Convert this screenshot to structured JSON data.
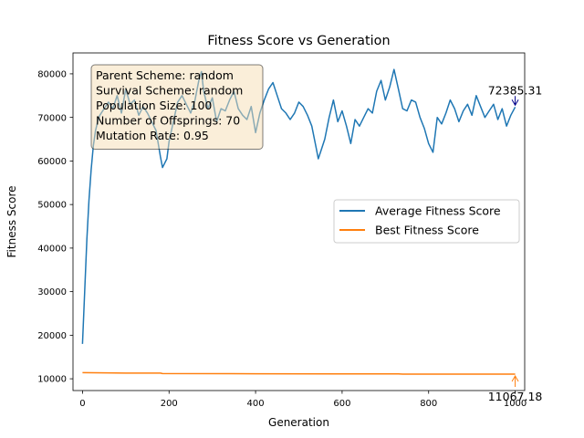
{
  "chart_data": {
    "type": "line",
    "title": "Fitness Score vs Generation",
    "xlabel": "Generation",
    "ylabel": "Fitness Score",
    "xlim": [
      -22,
      1022
    ],
    "ylim": [
      7300,
      84800
    ],
    "xticks": [
      0,
      200,
      400,
      600,
      800,
      1000
    ],
    "yticks": [
      10000,
      20000,
      30000,
      40000,
      50000,
      60000,
      70000,
      80000
    ],
    "grid": false,
    "legend_position": "center-right",
    "series": [
      {
        "name": "Average Fitness Score",
        "color": "#1f77b4",
        "x": [
          0,
          5,
          10,
          15,
          20,
          25,
          30,
          35,
          40,
          50,
          60,
          70,
          80,
          90,
          100,
          110,
          120,
          130,
          140,
          150,
          160,
          170,
          180,
          185,
          190,
          195,
          200,
          210,
          220,
          230,
          240,
          250,
          260,
          270,
          275,
          280,
          290,
          300,
          310,
          320,
          330,
          340,
          350,
          360,
          370,
          380,
          390,
          400,
          410,
          420,
          430,
          440,
          450,
          460,
          470,
          480,
          490,
          500,
          510,
          520,
          530,
          540,
          545,
          550,
          560,
          570,
          580,
          590,
          600,
          610,
          620,
          630,
          640,
          650,
          660,
          670,
          680,
          690,
          700,
          710,
          720,
          730,
          740,
          750,
          760,
          770,
          780,
          790,
          800,
          810,
          820,
          830,
          840,
          850,
          860,
          870,
          880,
          890,
          900,
          910,
          920,
          930,
          940,
          950,
          960,
          970,
          980,
          990,
          1000
        ],
        "values": [
          18000,
          30000,
          42000,
          51000,
          58000,
          63500,
          67000,
          69000,
          70500,
          72000,
          73500,
          72000,
          75000,
          71000,
          76500,
          73000,
          74000,
          70500,
          72500,
          71000,
          69000,
          67000,
          61000,
          58500,
          59500,
          60500,
          64500,
          69000,
          73500,
          75000,
          73000,
          71000,
          74000,
          79000,
          80500,
          76000,
          72000,
          74500,
          69000,
          72000,
          71500,
          74000,
          76000,
          72000,
          70500,
          69500,
          72500,
          66500,
          71000,
          74000,
          76500,
          78000,
          75000,
          72000,
          71000,
          69500,
          71000,
          73500,
          72500,
          70500,
          68000,
          63000,
          60500,
          62000,
          65000,
          70000,
          74000,
          69000,
          71500,
          68000,
          64000,
          69500,
          68000,
          70000,
          72000,
          71000,
          76000,
          78500,
          74000,
          77000,
          81000,
          76500,
          72000,
          71500,
          74000,
          73500,
          70000,
          67500,
          64000,
          62000,
          70000,
          68500,
          71000,
          74000,
          72000,
          69000,
          71500,
          73000,
          70500,
          75000,
          72500,
          70000,
          71500,
          73000,
          69500,
          72000,
          68000,
          70500,
          72385.31
        ]
      },
      {
        "name": "Best Fitness Score",
        "color": "#ff7f0e",
        "x": [
          0,
          100,
          180,
          185,
          400,
          600,
          730,
          740,
          900,
          1000
        ],
        "values": [
          11400,
          11300,
          11300,
          11200,
          11150,
          11120,
          11110,
          11080,
          11070,
          11067.18
        ]
      }
    ],
    "annotations": [
      {
        "label": "72385.31",
        "x": 1000,
        "y": 72385.31,
        "color": "#00008b"
      },
      {
        "label": "11067.18",
        "x": 1000,
        "y": 11067.18,
        "color": "#ff7f0e"
      }
    ],
    "info_box": {
      "lines": [
        "Parent Scheme: random",
        "Survival Scheme: random",
        "Population Size: 100",
        "Number of Offsprings: 70",
        "Mutation Rate: 0.95"
      ],
      "background": "#f5deb3",
      "border": "#000000"
    }
  }
}
